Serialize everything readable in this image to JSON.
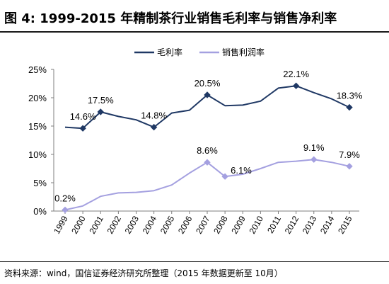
{
  "header": {
    "figure_label": "图 4:",
    "title": "1999-2015 年精制茶行业销售毛利率与销售净利率"
  },
  "footer": {
    "source": "资料来源：wind，国信证券经济研究所整理（2015 年数据更新至 10月）"
  },
  "chart_data": {
    "type": "line",
    "categories": [
      "1999",
      "2000",
      "2001",
      "2002",
      "2003",
      "2004",
      "2005",
      "2006",
      "2007",
      "2008",
      "2009",
      "2010",
      "2011",
      "2012",
      "2013",
      "2014",
      "2015"
    ],
    "series": [
      {
        "name": "毛利率",
        "color": "#1f3864",
        "values": [
          14.8,
          14.6,
          17.5,
          16.7,
          16.1,
          14.8,
          17.3,
          17.8,
          20.5,
          18.6,
          18.7,
          19.4,
          21.7,
          22.1,
          20.9,
          19.8,
          18.3
        ]
      },
      {
        "name": "销售利润率",
        "color": "#a4a0e0",
        "values": [
          0.2,
          0.9,
          2.6,
          3.2,
          3.3,
          3.6,
          4.6,
          6.7,
          8.6,
          6.1,
          6.5,
          7.5,
          8.6,
          8.8,
          9.1,
          8.6,
          7.9
        ]
      }
    ],
    "annotations": {
      "毛利率": [
        {
          "index": 1,
          "label": "14.6%"
        },
        {
          "index": 2,
          "label": "17.5%"
        },
        {
          "index": 5,
          "label": "14.8%"
        },
        {
          "index": 8,
          "label": "20.5%"
        },
        {
          "index": 13,
          "label": "22.1%"
        },
        {
          "index": 16,
          "label": "18.3%"
        }
      ],
      "销售利润率": [
        {
          "index": 0,
          "label": "0.2%"
        },
        {
          "index": 8,
          "label": "8.6%"
        },
        {
          "index": 9,
          "label": "6.1%"
        },
        {
          "index": 14,
          "label": "9.1%"
        },
        {
          "index": 16,
          "label": "7.9%"
        }
      ]
    },
    "marker_indices": {
      "毛利率": [
        1,
        2,
        5,
        8,
        13,
        16
      ],
      "销售利润率": [
        0,
        8,
        9,
        14,
        16
      ]
    },
    "yticks": [
      "0%",
      "5%",
      "10%",
      "15%",
      "20%",
      "25%"
    ],
    "ylim": [
      0,
      25
    ],
    "legend_position": "top",
    "grid": false
  }
}
